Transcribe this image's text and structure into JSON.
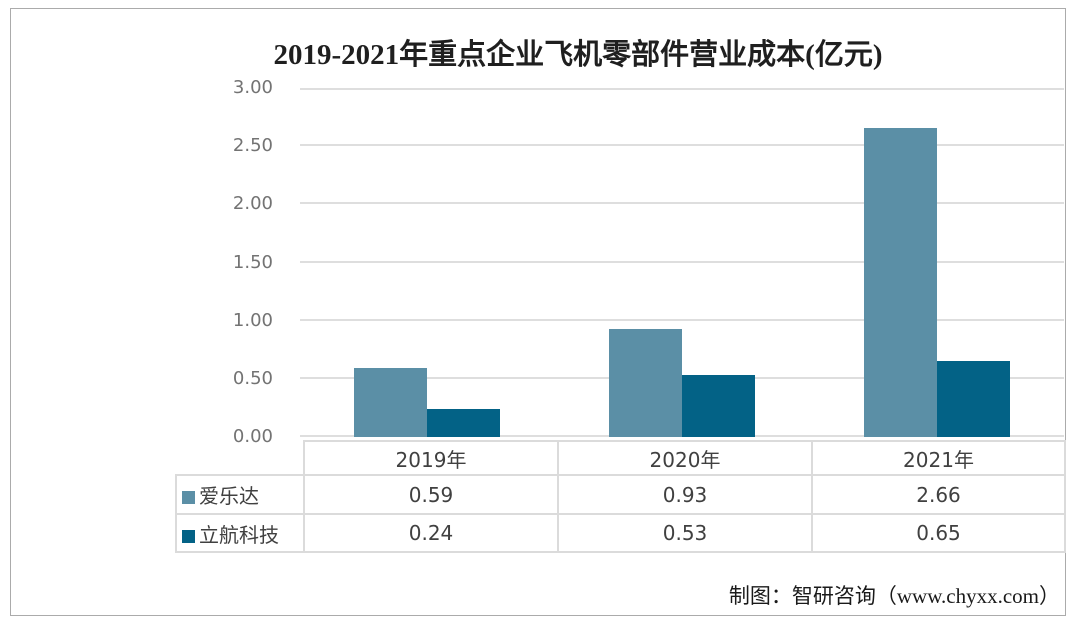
{
  "title": "2019-2021年重点企业飞机零部件营业成本(亿元)",
  "footer": {
    "credit": "制图：智研咨询（www.chyxx.com）"
  },
  "chart_data": {
    "type": "bar",
    "title": "2019-2021年重点企业飞机零部件营业成本(亿元)",
    "unit": "亿元",
    "categories": [
      "2019年",
      "2020年",
      "2021年"
    ],
    "series": [
      {
        "name": "爱乐达",
        "color": "#5B8FA6",
        "values": [
          0.59,
          0.93,
          2.66
        ]
      },
      {
        "name": "立航科技",
        "color": "#036286",
        "values": [
          0.24,
          0.53,
          0.65
        ]
      }
    ],
    "ylim": [
      0,
      3
    ],
    "yticks": [
      "0.00",
      "0.50",
      "1.00",
      "1.50",
      "2.00",
      "2.50",
      "3.00"
    ],
    "grid": true,
    "legend_position": "data-table-left",
    "colors": {
      "gridline": "#DEDEDE",
      "table_border": "#DBDBDB",
      "axis_text": "#737373",
      "table_text": "#404040",
      "frame_border": "#ABABAB"
    }
  }
}
